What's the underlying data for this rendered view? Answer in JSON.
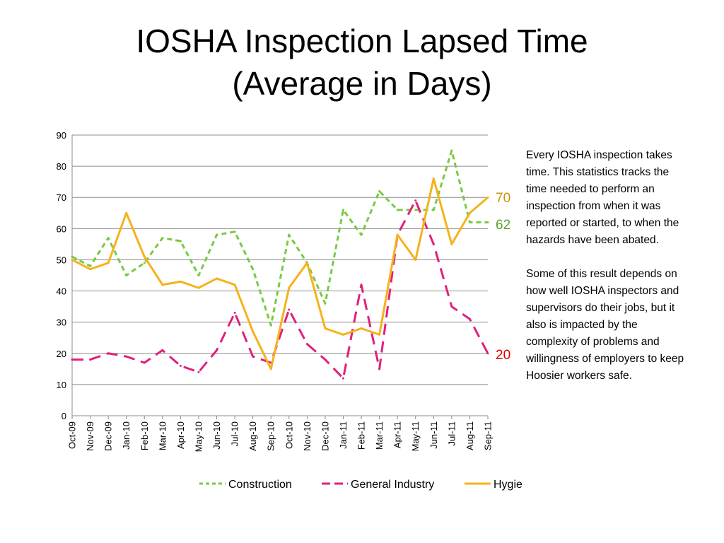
{
  "title": {
    "line1": "IOSHA Inspection Lapsed Time",
    "line2": "(Average in Days)"
  },
  "note": {
    "paragraph1": "Every IOSHA inspection takes time.  This statistics tracks the time needed to perform an inspection from when it was reported or started, to when the hazards have been abated.",
    "paragraph2": "Some of this result depends on how well IOSHA inspectors and supervisors do their jobs, but it also is impacted by the complexity of problems and willingness of employers to keep Hoosier workers safe."
  },
  "end_labels": {
    "hygiene": "70",
    "construction": "62",
    "general_industry": "20"
  },
  "chart_data": {
    "type": "line",
    "title": "IOSHA Inspection Lapsed Time (Average in Days)",
    "categories": [
      "Oct-09",
      "Nov-09",
      "Dec-09",
      "Jan-10",
      "Feb-10",
      "Mar-10",
      "Apr-10",
      "May-10",
      "Jun-10",
      "Jul-10",
      "Aug-10",
      "Sep-10",
      "Oct-10",
      "Nov-10",
      "Dec-10",
      "Jan-11",
      "Feb-11",
      "Mar-11",
      "Apr-11",
      "May-11",
      "Jun-11",
      "Jul-11",
      "Aug-11",
      "Sep-11"
    ],
    "ylim": [
      0,
      90
    ],
    "yticks": [
      "0",
      "10",
      "20",
      "30",
      "40",
      "50",
      "60",
      "70",
      "80",
      "90"
    ],
    "grid": true,
    "legend_position": "bottom",
    "series": [
      {
        "name": "Construction",
        "color": "#7AC943",
        "dash": "dashed",
        "values": [
          51,
          48,
          57,
          45,
          49,
          57,
          56,
          45,
          58,
          59,
          47,
          29,
          58,
          49,
          36,
          66,
          58,
          72,
          66,
          66,
          66,
          85,
          62,
          62
        ]
      },
      {
        "name": "General Industry",
        "color": "#E0217A",
        "dash": "long-dash",
        "values": [
          18,
          18,
          20,
          19,
          17,
          21,
          16,
          14,
          21,
          33,
          19,
          17,
          34,
          23,
          18,
          12,
          42,
          15,
          58,
          69,
          55,
          35,
          31,
          20
        ]
      },
      {
        "name": "Hygiene",
        "color": "#F5B21B",
        "dash": "solid",
        "values": [
          50,
          47,
          49,
          65,
          51,
          42,
          43,
          41,
          44,
          42,
          27,
          15,
          41,
          49,
          28,
          26,
          28,
          26,
          58,
          50,
          76,
          55,
          65,
          70
        ]
      }
    ]
  }
}
